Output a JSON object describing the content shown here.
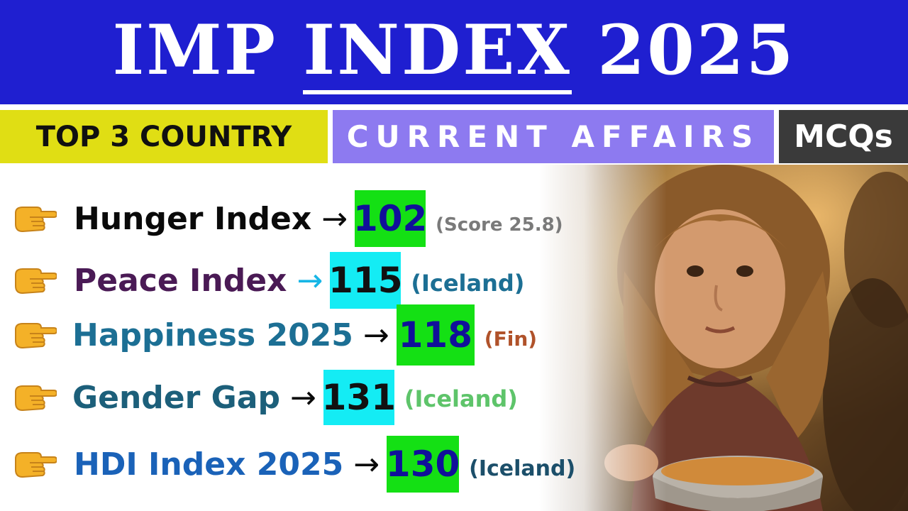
{
  "header": {
    "title_part1": "IMP ",
    "title_underlined": "INDEX",
    "title_part2": " 2025"
  },
  "tags": {
    "top": "TOP 3 COUNTRY",
    "current_affairs": "CURRENT AFFAIRS",
    "mcqs": "MCQs"
  },
  "rows": [
    {
      "label": "Hunger Index",
      "arrow": "→",
      "rank": "102",
      "note": "(Score 25.8)"
    },
    {
      "label": "Peace Index",
      "arrow": "→",
      "rank": "115",
      "note": "(Iceland)"
    },
    {
      "label": "Happiness 2025",
      "arrow": "→",
      "rank": "118",
      "note": "(Fin)"
    },
    {
      "label": "Gender Gap",
      "arrow": "→",
      "rank": "131",
      "note": "(Iceland)"
    },
    {
      "label": "HDI Index 2025",
      "arrow": "→",
      "rank": "130",
      "note": "(Iceland)"
    }
  ],
  "icons": {
    "row_icon": "pointing-hand-icon",
    "photo": "child-with-bowl-photo"
  },
  "colors": {
    "header_bg": "#1f1fd0",
    "tag_top_bg": "#e0de14",
    "tag_ca_bg": "#8d7af0",
    "tag_mcq_bg": "#3a3a3a",
    "rank_green": "#14e014",
    "rank_cyan": "#14ecf4"
  }
}
